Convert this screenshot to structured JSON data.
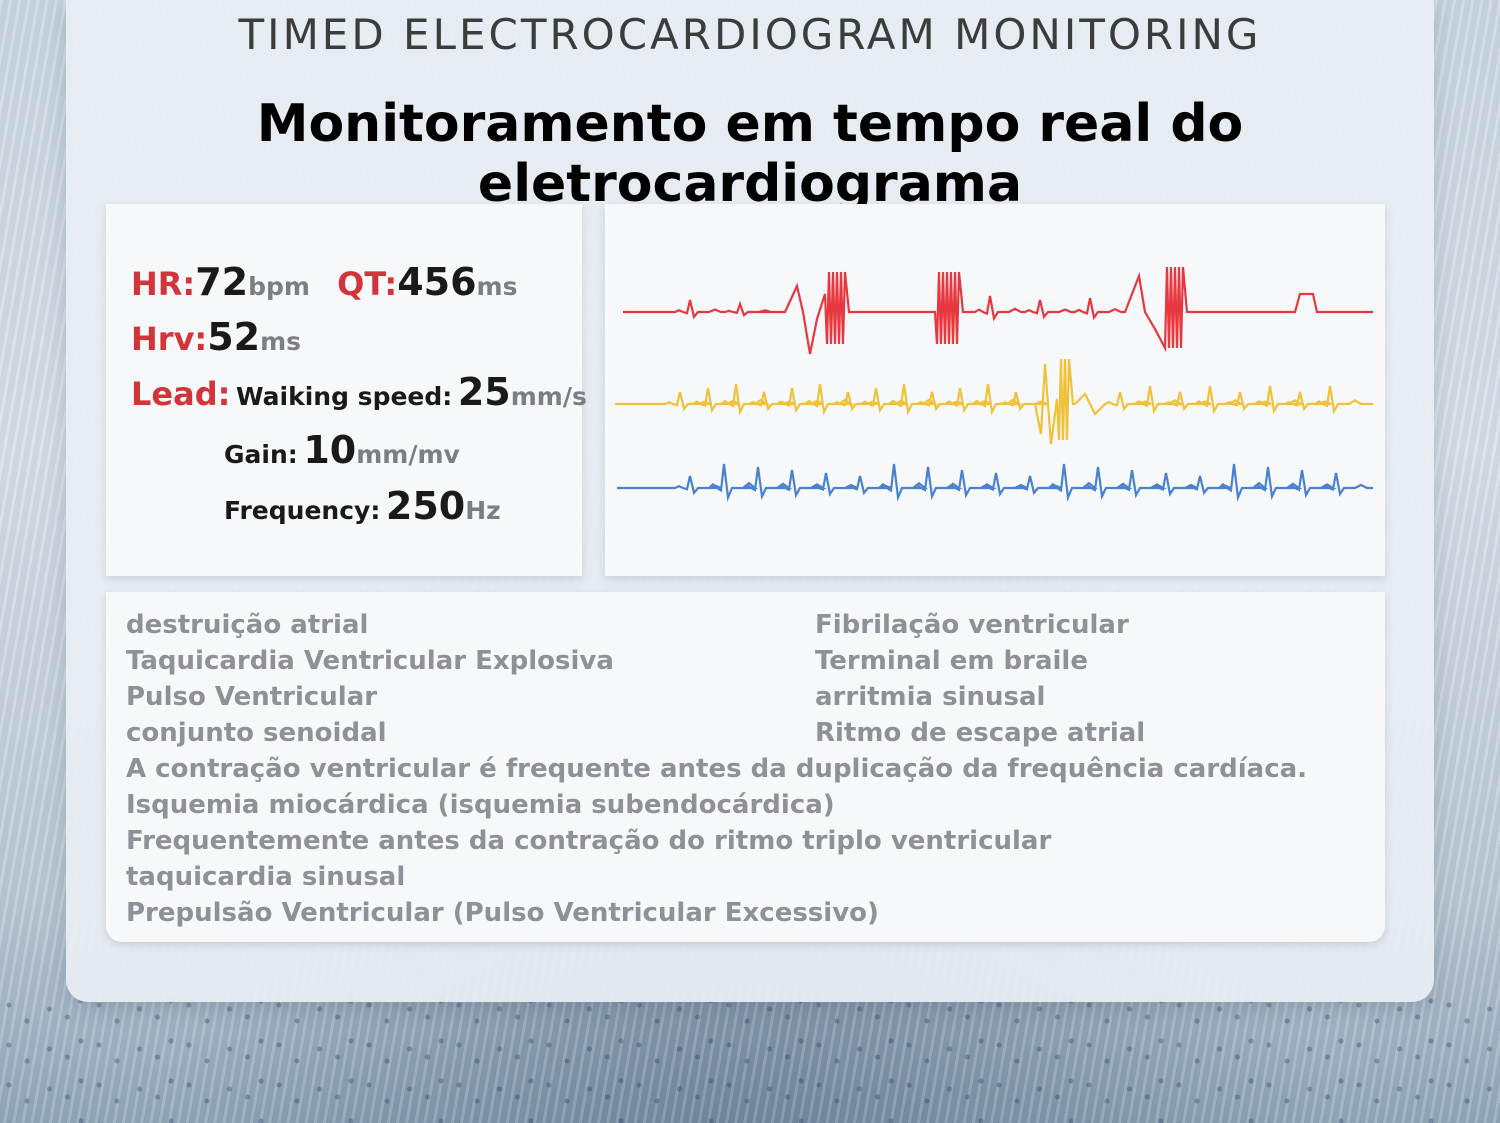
{
  "header": {
    "top_title": "TIMED ELECTROCARDIOGRAM MONITORING",
    "main_title": "Monitoramento em tempo real do eletrocardiograma"
  },
  "stats": {
    "hr": {
      "label": "HR:",
      "value": "72",
      "unit": "bpm"
    },
    "qt": {
      "label": "QT:",
      "value": "456",
      "unit": "ms"
    },
    "hrv": {
      "label": "Hrv:",
      "value": "52",
      "unit": "ms"
    },
    "lead": {
      "label": "Lead:"
    },
    "walking_speed": {
      "label": "Waiking speed:",
      "value": "25",
      "unit": "mm/s"
    },
    "gain": {
      "label": "Gain:",
      "value": "10",
      "unit": "mm/mv"
    },
    "frequency": {
      "label": "Frequency:",
      "value": "250",
      "unit": "Hz"
    }
  },
  "ecg": {
    "colors": {
      "red": "#e8383f",
      "yellow": "#f0c23a",
      "blue": "#4a82d0"
    }
  },
  "conditions": {
    "left": [
      "destruição atrial",
      "Taquicardia Ventricular Explosiva",
      "Pulso Ventricular",
      "conjunto senoidal"
    ],
    "right": [
      "Fibrilação ventricular",
      "Terminal em braile",
      "arritmia sinusal",
      "Ritmo de escape atrial"
    ],
    "full": [
      "A contração ventricular é frequente antes da duplicação da frequência cardíaca.",
      "Isquemia miocárdica (isquemia subendocárdica)",
      "Frequentemente antes da contração do ritmo triplo ventricular",
      "taquicardia sinusal",
      "Prepulsão Ventricular (Pulso Ventricular Excessivo)"
    ]
  }
}
